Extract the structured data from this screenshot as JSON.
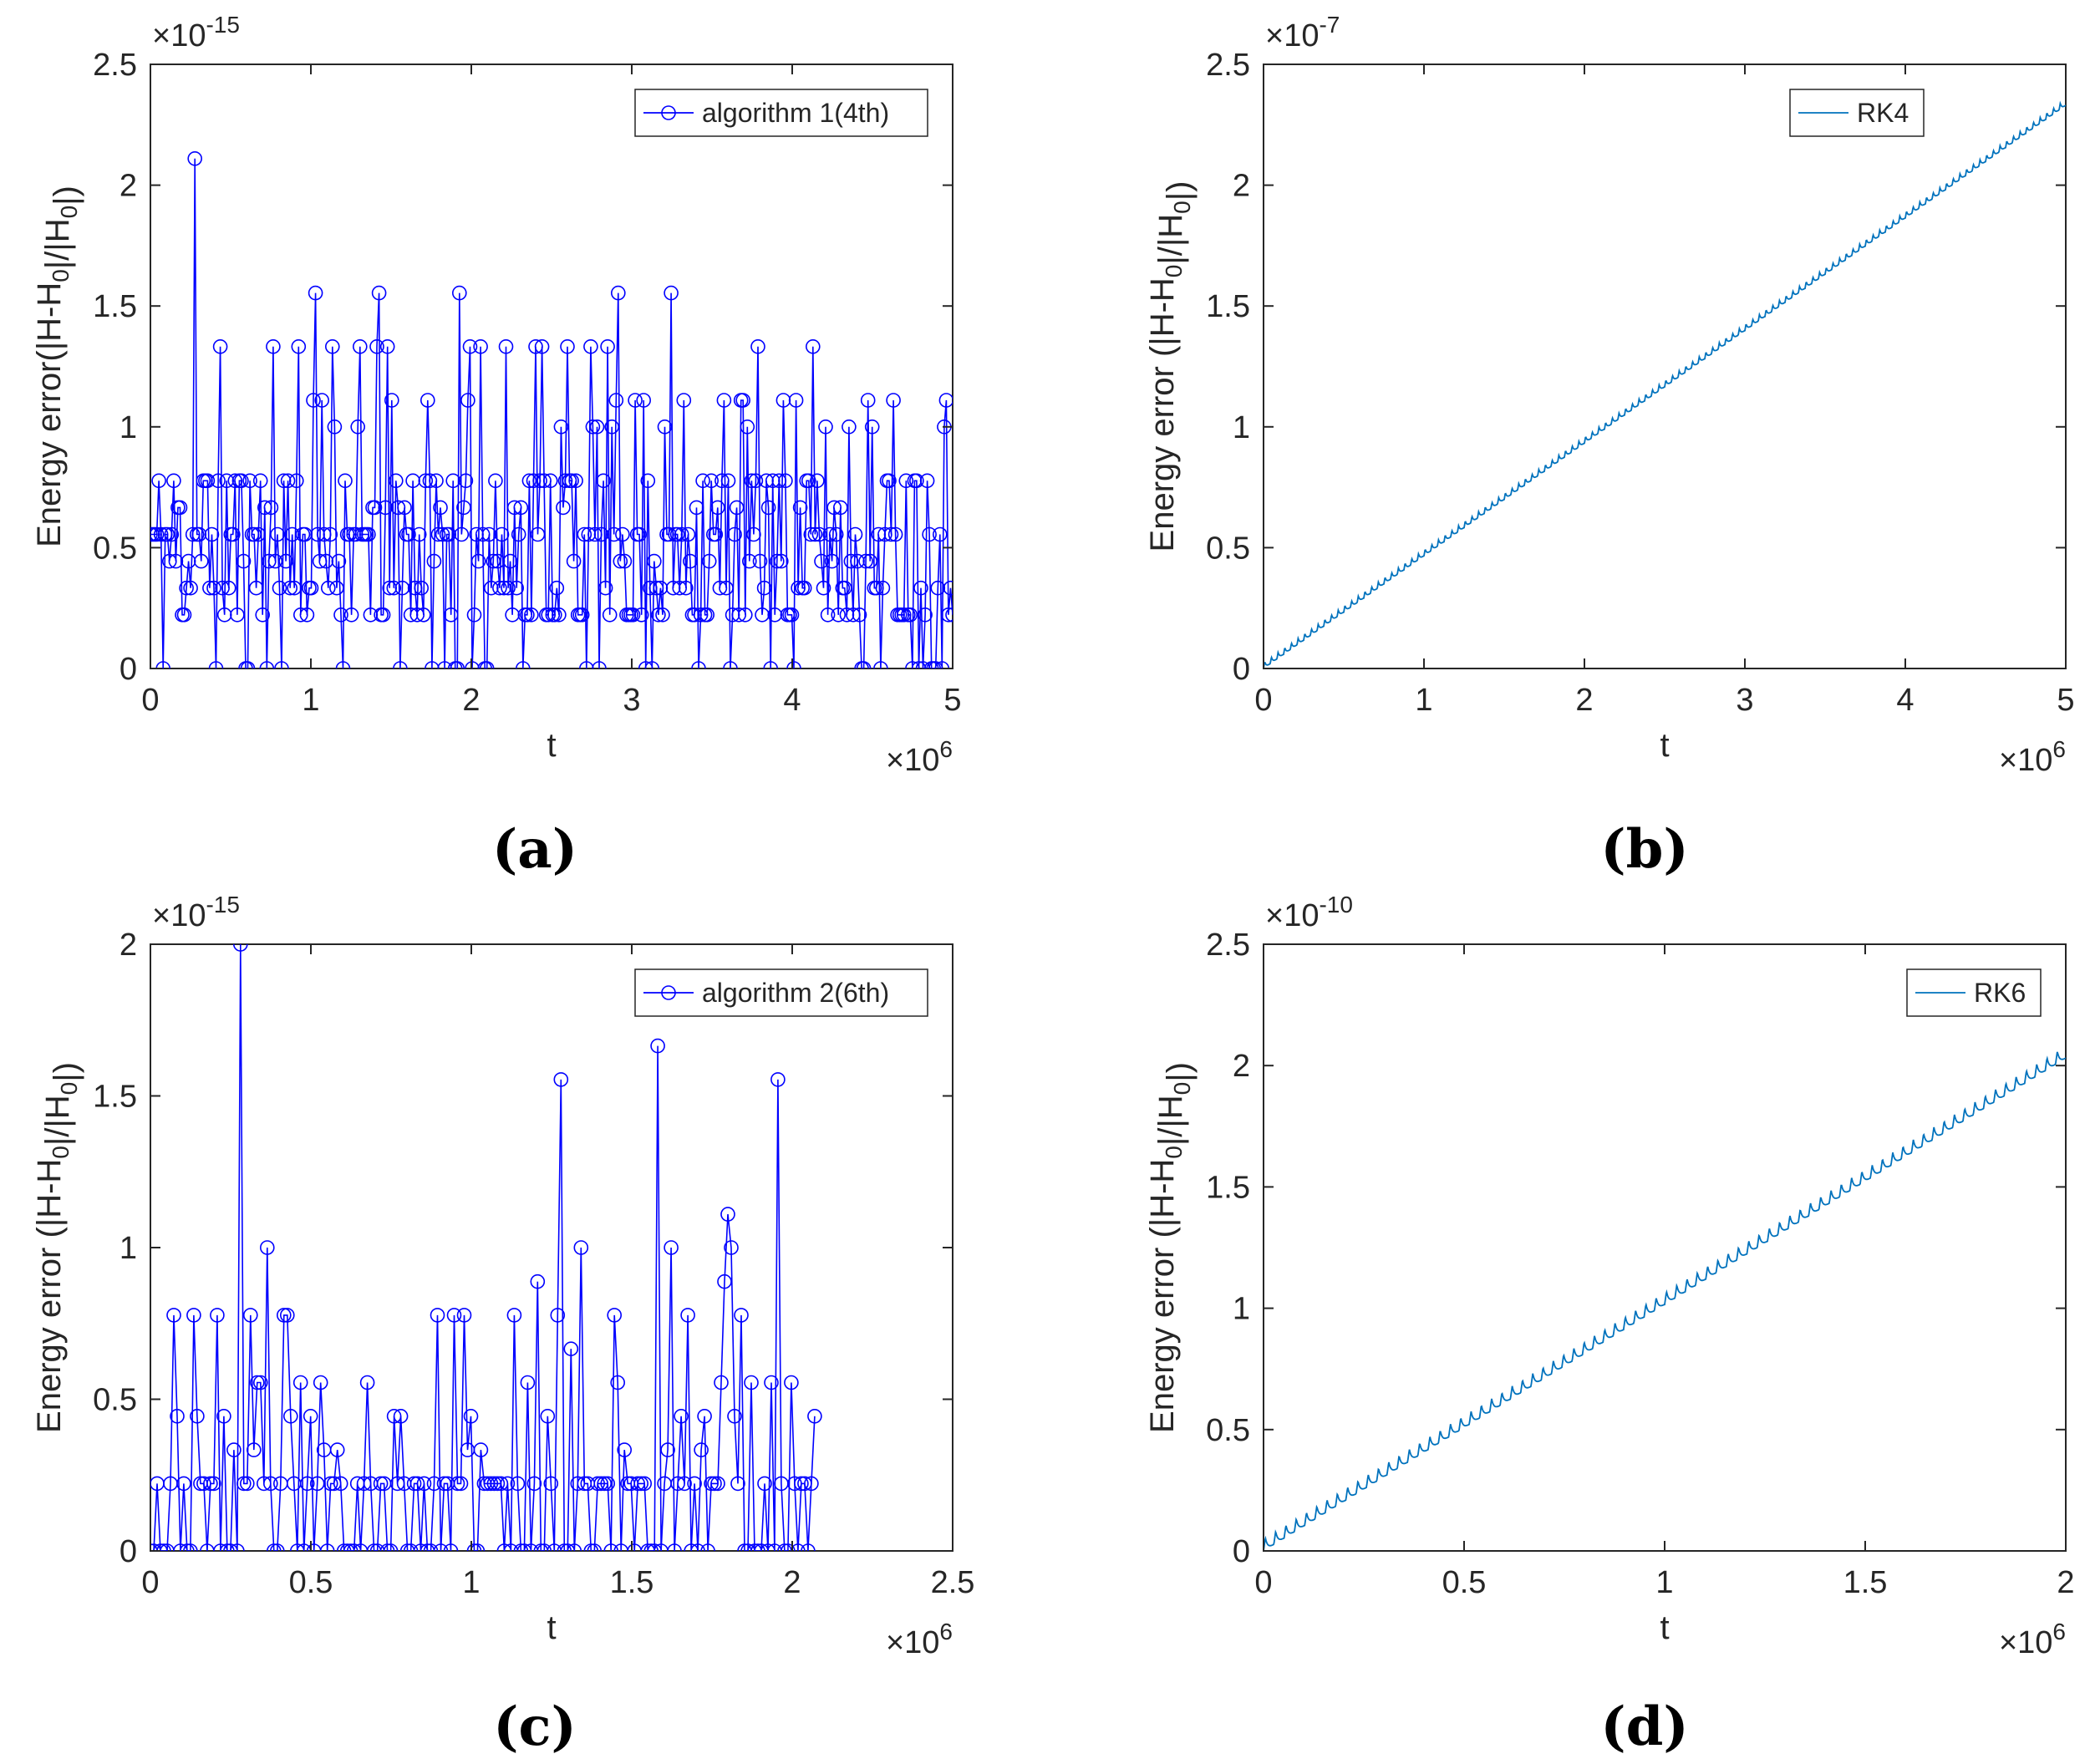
{
  "colors": {
    "algo": "#0000ff",
    "rk": "#0072bd",
    "axis": "#262626"
  },
  "panel_labels": [
    "(a)",
    "(b)",
    "(c)",
    "(d)"
  ],
  "chart_data": [
    {
      "id": "a",
      "type": "line",
      "marker": "circle",
      "series_name": "algorithm 1(4th)",
      "xlabel": "t",
      "ylabel": "Energy error(|H-H_0|/|H_0|)",
      "x_multiplier": "×10^6",
      "y_multiplier": "×10^-15",
      "xlim": [
        0,
        5
      ],
      "ylim": [
        0,
        2.5
      ],
      "xticks": [
        0,
        1,
        2,
        3,
        4,
        5
      ],
      "xtick_labels": [
        "0",
        "1",
        "2",
        "3",
        "4",
        "5"
      ],
      "yticks": [
        0,
        0.5,
        1,
        1.5,
        2,
        2.5
      ],
      "ytick_labels": [
        "0",
        "0.5",
        "1",
        "1.5",
        "2",
        "2.5"
      ],
      "legend_position": "top-right",
      "x_range": [
        0,
        5
      ],
      "n_points": 380,
      "seed": 11,
      "levels": [
        0,
        0.222,
        0.333,
        0.444,
        0.555,
        0.666,
        0.777,
        1.0,
        1.11,
        1.332,
        1.554
      ],
      "level_weights": [
        6,
        11,
        9,
        5,
        12,
        5,
        10,
        4,
        3,
        2,
        1
      ],
      "spikes": [
        [
          0.28,
          2.11
        ],
        [
          0.34,
          0.777
        ],
        [
          1.03,
          1.554
        ],
        [
          1.43,
          1.554
        ],
        [
          1.41,
          1.332
        ],
        [
          0.93,
          1.332
        ],
        [
          1.13,
          1.332
        ],
        [
          2.06,
          1.332
        ],
        [
          2.4,
          1.332
        ],
        [
          2.44,
          1.332
        ],
        [
          2.6,
          1.332
        ]
      ]
    },
    {
      "id": "b",
      "type": "line",
      "series_name": "RK4",
      "xlabel": "t",
      "ylabel": "Energy error (|H-H_0|/|H_0|)",
      "x_multiplier": "×10^6",
      "y_multiplier": "×10^-7",
      "xlim": [
        0,
        5
      ],
      "ylim": [
        0,
        2.5
      ],
      "xticks": [
        0,
        1,
        2,
        3,
        4,
        5
      ],
      "xtick_labels": [
        "0",
        "1",
        "2",
        "3",
        "4",
        "5"
      ],
      "yticks": [
        0,
        0.5,
        1,
        1.5,
        2,
        2.5
      ],
      "ytick_labels": [
        "0",
        "0.5",
        "1",
        "1.5",
        "2",
        "2.5"
      ],
      "legend_position": "top-right",
      "start": 0,
      "end_x": 5,
      "end_y": 2.33,
      "ripples": 120,
      "ripple_amp": 0.025
    },
    {
      "id": "c",
      "type": "line",
      "marker": "circle",
      "series_name": "algorithm 2(6th)",
      "xlabel": "t",
      "ylabel": "Energy error (|H-H_0|/|H_0|)",
      "x_multiplier": "×10^6",
      "y_multiplier": "×10^-15",
      "xlim": [
        0,
        2.5
      ],
      "ylim": [
        0,
        2
      ],
      "xticks": [
        0,
        0.5,
        1,
        1.5,
        2,
        2.5
      ],
      "xtick_labels": [
        "0",
        "0.5",
        "1",
        "1.5",
        "2",
        "2.5"
      ],
      "yticks": [
        0,
        0.5,
        1,
        1.5,
        2
      ],
      "ytick_labels": [
        "0",
        "0.5",
        "1",
        "1.5",
        "2"
      ],
      "legend_position": "top-right",
      "x_range": [
        0,
        2.07
      ],
      "n_points": 200,
      "seed": 23,
      "levels": [
        0,
        0.222,
        0.333,
        0.444,
        0.555,
        0.777
      ],
      "level_weights": [
        12,
        14,
        2,
        2,
        3,
        2
      ],
      "spikes": [
        [
          0.28,
          2.0
        ],
        [
          0.36,
          1.0
        ],
        [
          0.42,
          0.777
        ],
        [
          1.28,
          1.554
        ],
        [
          1.58,
          1.665
        ],
        [
          1.96,
          1.554
        ],
        [
          1.8,
          1.11
        ],
        [
          1.81,
          1.0
        ],
        [
          1.79,
          0.888
        ],
        [
          1.34,
          1.0
        ],
        [
          1.62,
          1.0
        ],
        [
          1.21,
          0.888
        ],
        [
          1.31,
          0.666
        ],
        [
          1.27,
          0.777
        ],
        [
          1.45,
          0.777
        ]
      ]
    },
    {
      "id": "d",
      "type": "line",
      "series_name": "RK6",
      "xlabel": "t",
      "ylabel": "Energy error (|H-H_0|/|H_0|)",
      "x_multiplier": "×10^6",
      "y_multiplier": "×10^-10",
      "xlim": [
        0,
        2
      ],
      "ylim": [
        0,
        2.5
      ],
      "xticks": [
        0,
        0.5,
        1,
        1.5,
        2
      ],
      "xtick_labels": [
        "0",
        "0.5",
        "1",
        "1.5",
        "2"
      ],
      "yticks": [
        0,
        0.5,
        1,
        1.5,
        2,
        2.5
      ],
      "ytick_labels": [
        "0",
        "0.5",
        "1",
        "1.5",
        "2",
        "2.5"
      ],
      "legend_position": "top-right",
      "start": 0,
      "end_x": 2,
      "end_y": 2.03,
      "ripples": 78,
      "ripple_amp": 0.05
    }
  ]
}
